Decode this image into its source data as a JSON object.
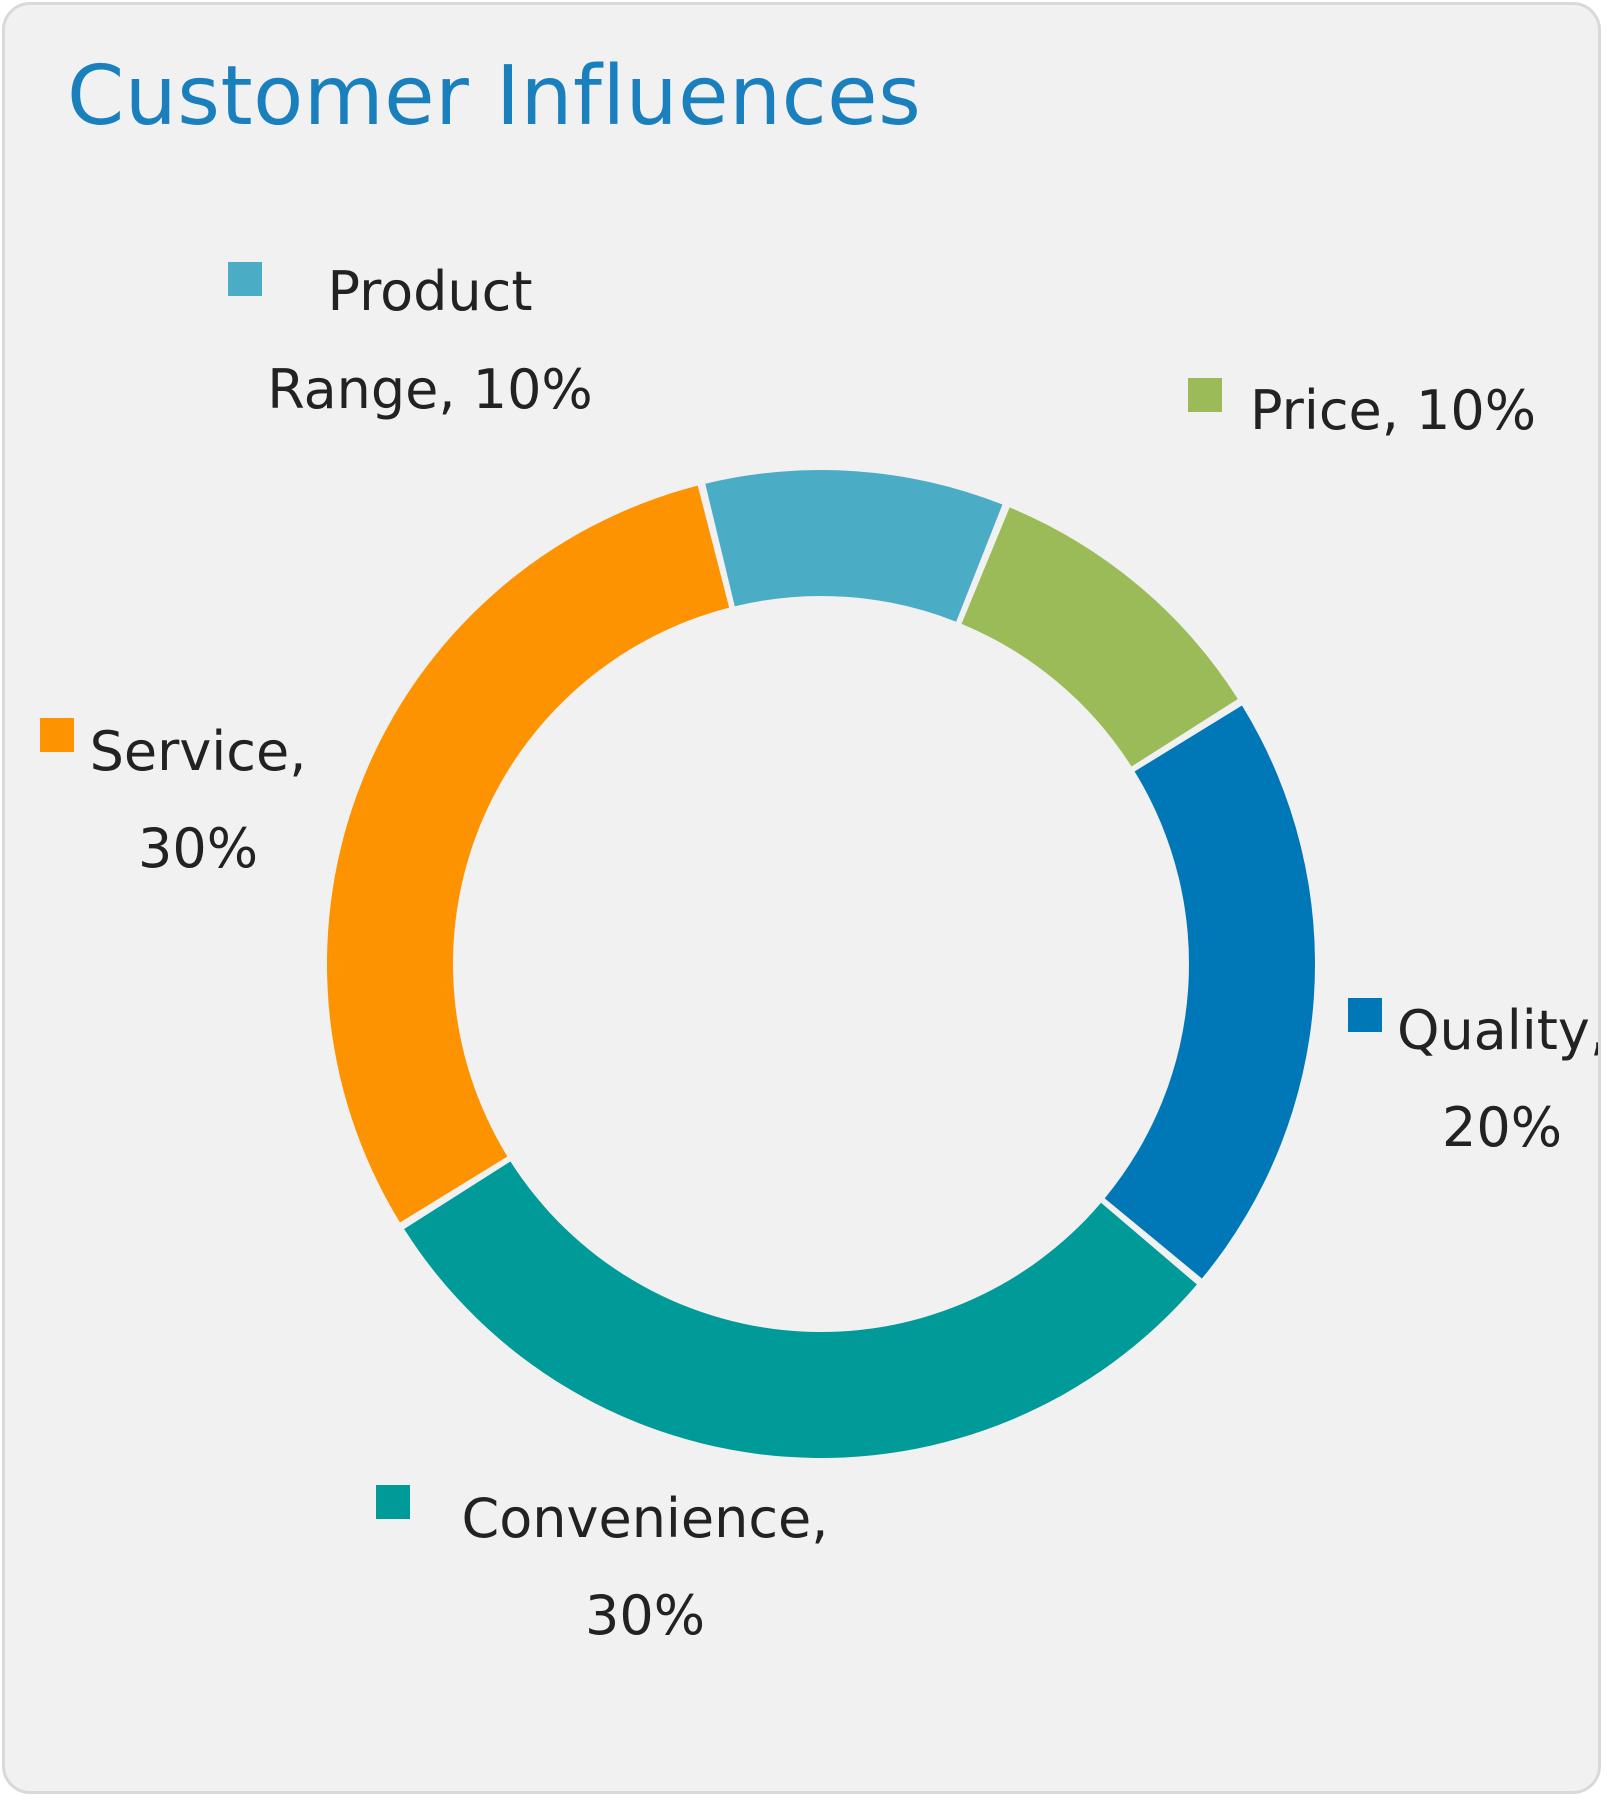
{
  "chart_data": {
    "type": "pie",
    "title": "Customer Influences",
    "hole": true,
    "slices": [
      {
        "label": "Product Range",
        "value": 10,
        "display": "10%",
        "color": "#4bacc6",
        "label_lines": [
          "Product",
          "Range, 10%"
        ]
      },
      {
        "label": "Price",
        "value": 10,
        "display": "10%",
        "color": "#9bbb59",
        "label_lines": [
          "Price, 10%"
        ]
      },
      {
        "label": "Quality",
        "value": 20,
        "display": "20%",
        "color": "#0078b8",
        "label_lines": [
          "Quality,",
          "20%"
        ]
      },
      {
        "label": "Convenience",
        "value": 30,
        "display": "30%",
        "color": "#009a98",
        "label_lines": [
          "Convenience,",
          "30%"
        ]
      },
      {
        "label": "Service",
        "value": 30,
        "display": "30%",
        "color": "#fd9300",
        "label_lines": [
          "Service,",
          "30%"
        ]
      }
    ],
    "legend": "none",
    "data_labels": "outside, with colored marker"
  }
}
